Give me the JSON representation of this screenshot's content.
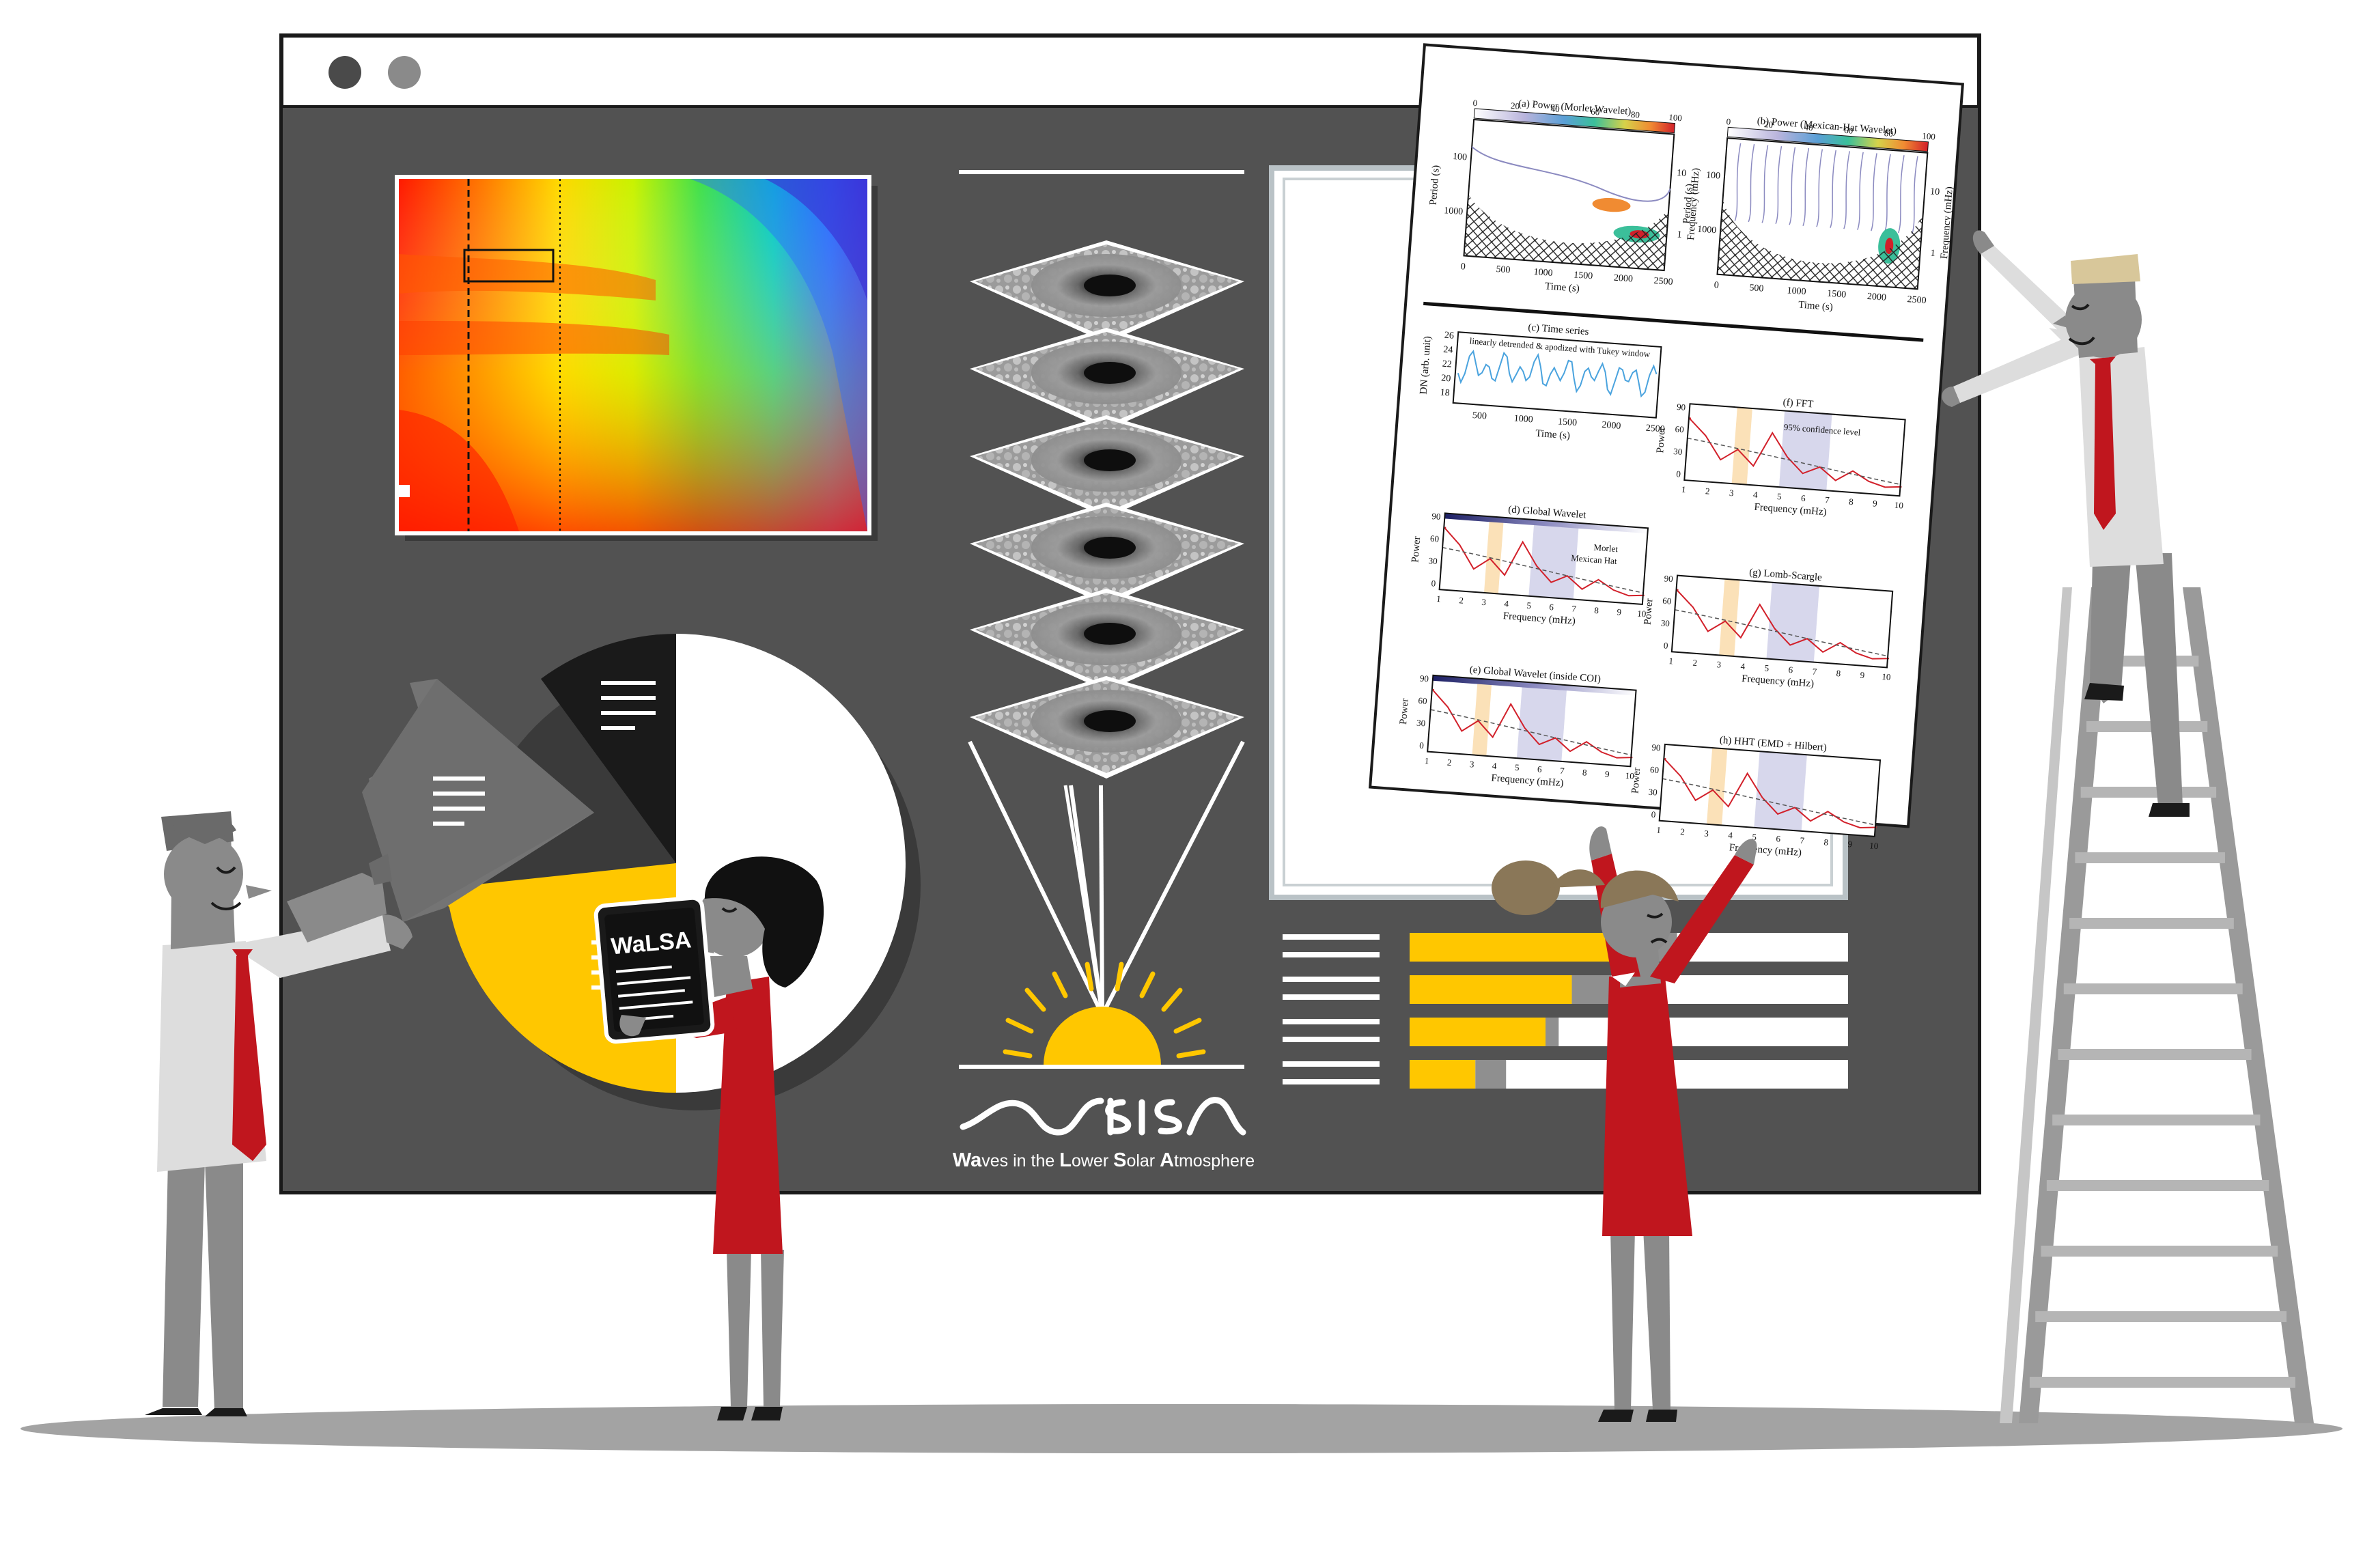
{
  "colors": {
    "board": "#525252",
    "frame": "#ffffff",
    "accent_yellow": "#ffc700",
    "accent_red": "#c0161e",
    "skin_grey": "#8a8a8a",
    "dark": "#1a1a1a"
  },
  "window": {
    "dots": [
      "dot-dark",
      "dot-grey"
    ]
  },
  "tablet": {
    "title": "WaLSA"
  },
  "logo": {
    "wordmark": "WaLSA",
    "tagline_parts": [
      {
        "b": "Wa",
        "r": "ves in the "
      },
      {
        "b": "L",
        "r": "ower "
      },
      {
        "b": "S",
        "r": "olar "
      },
      {
        "b": "A",
        "r": "tmosphere"
      }
    ],
    "tagline": "Waves in the Lower Solar Atmosphere"
  },
  "paper": {
    "panels": {
      "a": {
        "title": "(a) Power (Morlet Wavelet)",
        "ylabel": "Period (s)",
        "xlabel": "Time (s)",
        "rlabel": "Frequency (mHz)",
        "cbar_ticks": [
          "0",
          "20",
          "40",
          "60",
          "80",
          "100"
        ],
        "yticks": [
          "100",
          "1000"
        ],
        "xticks": [
          "0",
          "500",
          "1000",
          "1500",
          "2000",
          "2500"
        ],
        "rticks": [
          "10",
          "1"
        ]
      },
      "b": {
        "title": "(b) Power (Mexican-Hat Wavelet)",
        "ylabel": "Period (s)",
        "xlabel": "Time (s)",
        "rlabel": "Frequency (mHz)",
        "cbar_ticks": [
          "0",
          "20",
          "40",
          "60",
          "80",
          "100"
        ],
        "yticks": [
          "100",
          "1000"
        ],
        "xticks": [
          "0",
          "500",
          "1000",
          "1500",
          "2000",
          "2500"
        ],
        "rticks": [
          "10",
          "1"
        ]
      },
      "c": {
        "title": "(c) Time series",
        "ylabel": "DN (arb. unit)",
        "xlabel": "Time (s)",
        "note": "linearly detrended & apodized with Tukey window",
        "yticks": [
          "26",
          "24",
          "22",
          "20",
          "18"
        ],
        "xticks": [
          "500",
          "1000",
          "1500",
          "2000",
          "2500"
        ]
      },
      "f": {
        "title": "(f) FFT",
        "ylabel": "Power",
        "xlabel": "Frequency (mHz)",
        "note": "95% confidence level",
        "yticks": [
          "90",
          "60",
          "30",
          "0"
        ],
        "xticks": [
          "1",
          "2",
          "3",
          "4",
          "5",
          "6",
          "7",
          "8",
          "9",
          "10"
        ]
      },
      "d": {
        "title": "(d) Global Wavelet",
        "ylabel": "Power",
        "xlabel": "Frequency (mHz)",
        "legend": [
          "Morlet",
          "Mexican Hat"
        ],
        "yticks": [
          "90",
          "60",
          "30",
          "0"
        ],
        "xticks": [
          "1",
          "2",
          "3",
          "4",
          "5",
          "6",
          "7",
          "8",
          "9",
          "10"
        ]
      },
      "g": {
        "title": "(g) Lomb-Scargle",
        "ylabel": "Power",
        "xlabel": "Frequency (mHz)",
        "yticks": [
          "90",
          "60",
          "30",
          "0"
        ],
        "xticks": [
          "1",
          "2",
          "3",
          "4",
          "5",
          "6",
          "7",
          "8",
          "9",
          "10"
        ]
      },
      "e": {
        "title": "(e) Global Wavelet (inside COI)",
        "ylabel": "Power",
        "xlabel": "Frequency (mHz)",
        "yticks": [
          "90",
          "60",
          "30",
          "0"
        ],
        "xticks": [
          "1",
          "2",
          "3",
          "4",
          "5",
          "6",
          "7",
          "8",
          "9",
          "10"
        ]
      },
      "h": {
        "title": "(h) HHT (EMD + Hilbert)",
        "ylabel": "Power",
        "xlabel": "Frequency (mHz)",
        "yticks": [
          "90",
          "60",
          "30",
          "0"
        ],
        "xticks": [
          "1",
          "2",
          "3",
          "4",
          "5",
          "6",
          "7",
          "8",
          "9",
          "10"
        ]
      }
    }
  },
  "progress_bars": [
    {
      "yellow": 0.52,
      "grey": 0.09
    },
    {
      "yellow": 0.37,
      "grey": 0.09
    },
    {
      "yellow": 0.31,
      "grey": 0.03
    },
    {
      "yellow": 0.15,
      "grey": 0.07
    }
  ],
  "pie": {
    "slices": [
      {
        "name": "white",
        "value": 0.5
      },
      {
        "name": "yellow",
        "value": 0.25
      },
      {
        "name": "grey",
        "value": 0.14
      },
      {
        "name": "black",
        "value": 0.11
      }
    ]
  }
}
